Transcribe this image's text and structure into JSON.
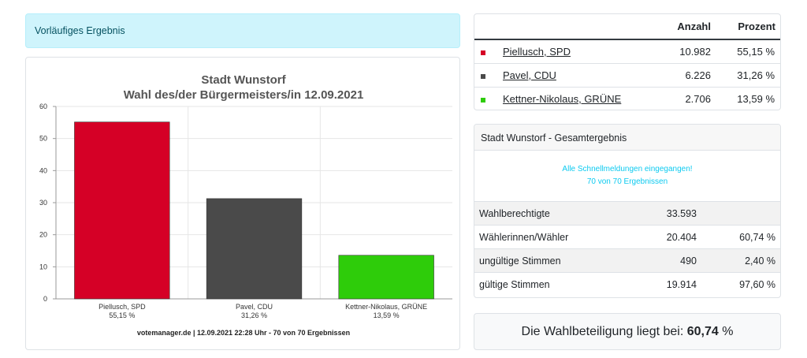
{
  "alert": {
    "text": "Vorläufiges Ergebnis"
  },
  "results_table": {
    "headers": {
      "anzahl": "Anzahl",
      "prozent": "Prozent"
    },
    "rows": [
      {
        "name": "Piellusch, SPD",
        "anzahl": "10.982",
        "prozent": "55,15 %",
        "color": "#d50026"
      },
      {
        "name": "Pavel, CDU",
        "anzahl": "6.226",
        "prozent": "31,26 %",
        "color": "#4a4a4a"
      },
      {
        "name": "Kettner-Nikolaus, GRÜNE",
        "anzahl": "2.706",
        "prozent": "13,59 %",
        "color": "#2ecc0a"
      }
    ]
  },
  "gesamt": {
    "title": "Stadt Wunstorf - Gesamtergebnis",
    "note_line1": "Alle Schnellmeldungen eingegangen!",
    "note_line2": "70 von 70 Ergebnissen",
    "rows": [
      {
        "label": "Wahlberechtigte",
        "value": "33.593",
        "percent": ""
      },
      {
        "label": "Wählerinnen/Wähler",
        "value": "20.404",
        "percent": "60,74 %"
      },
      {
        "label": "ungültige Stimmen",
        "value": "490",
        "percent": "2,40 %"
      },
      {
        "label": "gültige Stimmen",
        "value": "19.914",
        "percent": "97,60 %"
      }
    ]
  },
  "turnout": {
    "prefix": "Die Wahlbeteiligung liegt bei:",
    "value": "60,74",
    "suffix": "%"
  },
  "chart_data": {
    "type": "bar",
    "title": "Stadt Wunstorf",
    "subtitle": "Wahl des/der Bürgermeisters/in 12.09.2021",
    "categories": [
      "Piellusch, SPD",
      "Pavel, CDU",
      "Kettner-Nikolaus, GRÜNE"
    ],
    "category_percent_labels": [
      "55,15 %",
      "31,26 %",
      "13,59 %"
    ],
    "values": [
      55.15,
      31.26,
      13.59
    ],
    "colors": [
      "#d50026",
      "#4a4a4a",
      "#2ecc0a"
    ],
    "yticks": [
      0,
      10,
      20,
      30,
      40,
      50,
      60
    ],
    "ylim": [
      0,
      60
    ],
    "grid": true,
    "footer": "votemanager.de | 12.09.2021 22:28 Uhr - 70 von 70 Ergebnissen"
  }
}
